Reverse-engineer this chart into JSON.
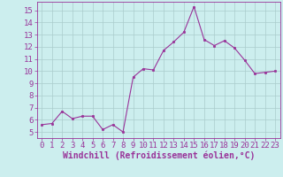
{
  "x": [
    0,
    1,
    2,
    3,
    4,
    5,
    6,
    7,
    8,
    9,
    10,
    11,
    12,
    13,
    14,
    15,
    16,
    17,
    18,
    19,
    20,
    21,
    22,
    23
  ],
  "y": [
    5.6,
    5.7,
    6.7,
    6.1,
    6.3,
    6.3,
    5.2,
    5.6,
    5.0,
    9.5,
    10.2,
    10.1,
    11.7,
    12.4,
    13.2,
    15.3,
    12.6,
    12.1,
    12.5,
    11.9,
    10.9,
    9.8,
    9.9,
    10.0
  ],
  "line_color": "#993399",
  "marker": ".",
  "marker_size": 3.5,
  "bg_color": "#cceeee",
  "grid_color": "#aacccc",
  "xlabel": "Windchill (Refroidissement éolien,°C)",
  "ylabel": "",
  "title": "",
  "xlim": [
    -0.5,
    23.5
  ],
  "ylim": [
    4.5,
    15.7
  ],
  "yticks": [
    5,
    6,
    7,
    8,
    9,
    10,
    11,
    12,
    13,
    14,
    15
  ],
  "xticks": [
    0,
    1,
    2,
    3,
    4,
    5,
    6,
    7,
    8,
    9,
    10,
    11,
    12,
    13,
    14,
    15,
    16,
    17,
    18,
    19,
    20,
    21,
    22,
    23
  ],
  "font_color": "#993399",
  "tick_fontsize": 6.5,
  "label_fontsize": 7.0
}
